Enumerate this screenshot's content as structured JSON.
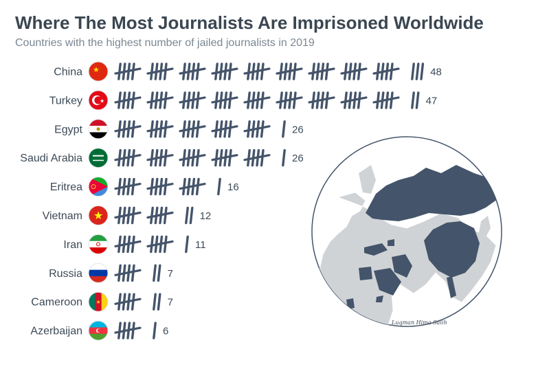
{
  "header": {
    "title": "Where The Most Journalists Are Imprisoned Worldwide",
    "subtitle": "Countries with the highest number of jailed journalists in 2019"
  },
  "colors": {
    "tally": "#44546a",
    "map_highlight": "#44546a",
    "map_land": "#d0d3d6",
    "text": "#3d4a57"
  },
  "chart_data": {
    "type": "pictograph",
    "unit": "tally mark = 1 journalist (bundles of 5)",
    "categories": [
      "China",
      "Turkey",
      "Egypt",
      "Saudi Arabia",
      "Eritrea",
      "Vietnam",
      "Iran",
      "Russia",
      "Cameroon",
      "Azerbaijan"
    ],
    "values": [
      48,
      47,
      26,
      26,
      16,
      12,
      11,
      7,
      7,
      6
    ],
    "flags": [
      "china-flag-icon",
      "turkey-flag-icon",
      "egypt-flag-icon",
      "saudi-arabia-flag-icon",
      "eritrea-flag-icon",
      "vietnam-flag-icon",
      "iran-flag-icon",
      "russia-flag-icon",
      "cameroon-flag-icon",
      "azerbaijan-flag-icon"
    ]
  },
  "map": {
    "icon": "globe-map-icon",
    "signature": "Luqman Hima Salih"
  }
}
